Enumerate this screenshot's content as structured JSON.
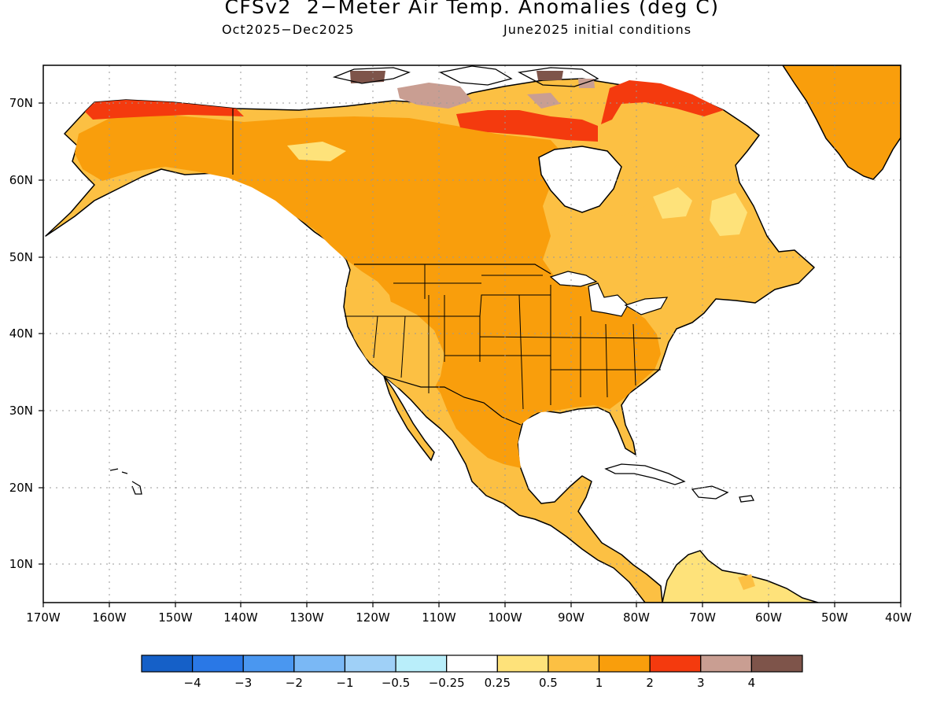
{
  "title": "CFSv2  2−Meter Air Temp. Anomalies (deg C)",
  "subtitle_period": "Oct2025−Dec2025",
  "subtitle_conditions": "June2025 initial conditions",
  "lat_labels": [
    "70N",
    "60N",
    "50N",
    "40N",
    "30N",
    "20N",
    "10N"
  ],
  "lon_labels": [
    "170W",
    "160W",
    "150W",
    "140W",
    "130W",
    "120W",
    "110W",
    "100W",
    "90W",
    "80W",
    "70W",
    "60W",
    "50W",
    "40W"
  ],
  "colorbar": {
    "colors": [
      "#1560c8",
      "#2a78e6",
      "#4a97f0",
      "#7ab8f5",
      "#9fd0f7",
      "#b9eefa",
      "#ffffff",
      "#fee27a",
      "#fcc043",
      "#f99e0c",
      "#f43a0e",
      "#c99e92",
      "#7e544a"
    ],
    "labels": [
      "−4",
      "−3",
      "−2",
      "−1",
      "−0.5",
      "−0.25",
      "0.25",
      "0.5",
      "1",
      "2",
      "3",
      "4"
    ]
  },
  "anomaly_colors": {
    "ocean": "#ffffff",
    "weak_warm": "#fee27a",
    "moderate_warm": "#fcc043",
    "warm": "#f99e0c",
    "strong_warm": "#f43a0e",
    "very_strong_warm": "#c99e92",
    "extreme_warm": "#7e544a"
  }
}
